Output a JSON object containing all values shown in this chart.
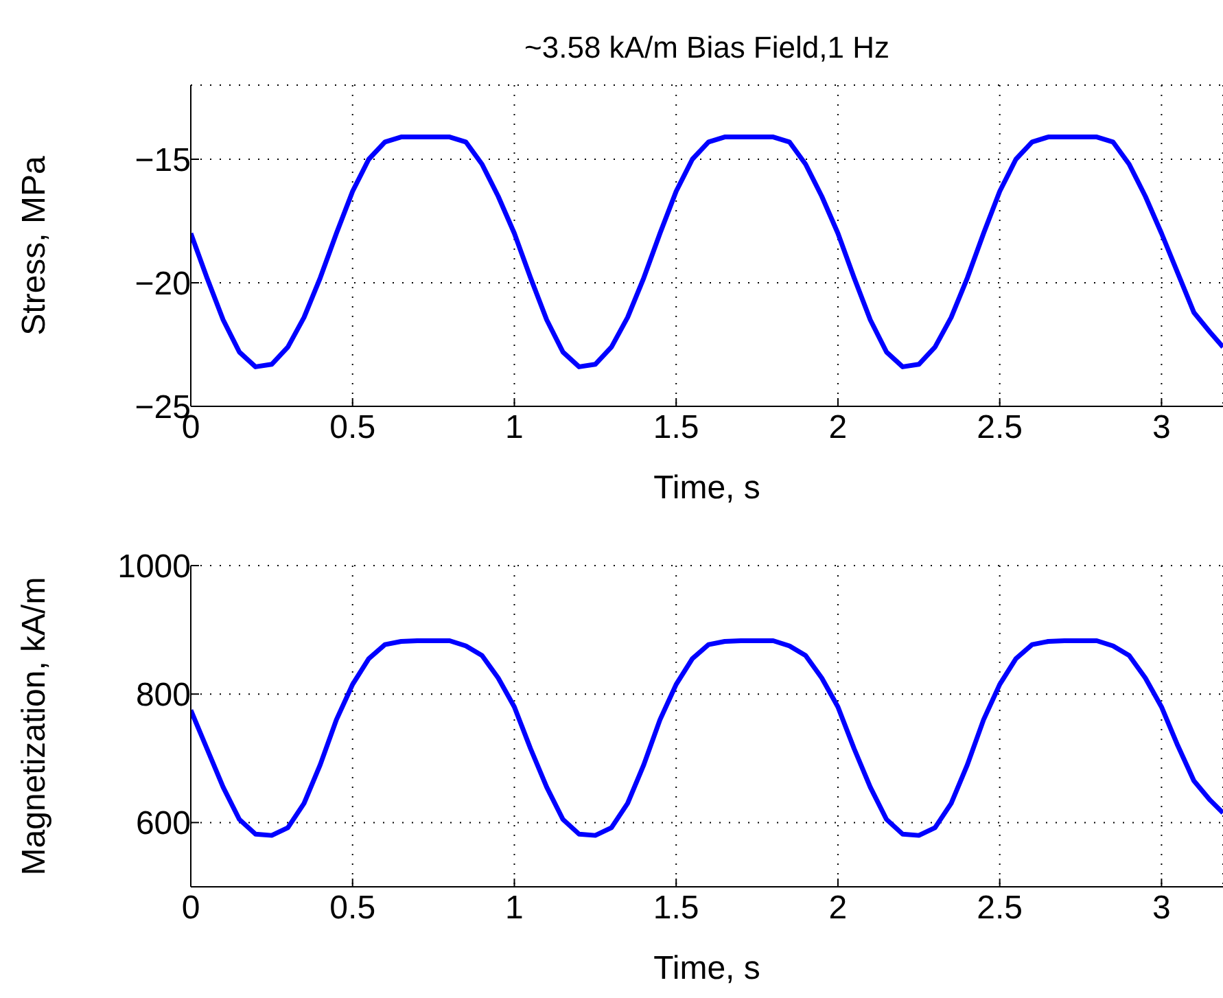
{
  "chart_data": [
    {
      "type": "line",
      "title": "~3.58 kA/m Bias Field,1 Hz",
      "xlabel": "Time, s",
      "ylabel": "Stress, MPa",
      "xlim": [
        0,
        3.19
      ],
      "xticks": [
        0,
        0.5,
        1,
        1.5,
        2,
        2.5,
        3
      ],
      "ylim": [
        -25,
        -12
      ],
      "yticks": [
        -25,
        -20,
        -15
      ],
      "grid": true,
      "x": [
        0,
        0.05,
        0.1,
        0.15,
        0.2,
        0.25,
        0.3,
        0.35,
        0.4,
        0.45,
        0.5,
        0.55,
        0.6,
        0.65,
        0.7,
        0.75,
        0.8,
        0.85,
        0.9,
        0.95,
        1,
        1.05,
        1.1,
        1.15,
        1.2,
        1.25,
        1.3,
        1.35,
        1.4,
        1.45,
        1.5,
        1.55,
        1.6,
        1.65,
        1.7,
        1.75,
        1.8,
        1.85,
        1.9,
        1.95,
        2,
        2.05,
        2.1,
        2.15,
        2.2,
        2.25,
        2.3,
        2.35,
        2.4,
        2.45,
        2.5,
        2.55,
        2.6,
        2.65,
        2.7,
        2.75,
        2.8,
        2.85,
        2.9,
        2.95,
        3,
        3.05,
        3.1,
        3.15,
        3.19
      ],
      "series": [
        {
          "color": "#0000ff",
          "values": [
            -18,
            -19.8,
            -21.5,
            -22.8,
            -23.4,
            -23.3,
            -22.6,
            -21.4,
            -19.8,
            -18,
            -16.3,
            -15,
            -14.3,
            -14.1,
            -14.1,
            -14.1,
            -14.1,
            -14.3,
            -15.2,
            -16.5,
            -18,
            -19.8,
            -21.5,
            -22.8,
            -23.4,
            -23.3,
            -22.6,
            -21.4,
            -19.8,
            -18,
            -16.3,
            -15,
            -14.3,
            -14.1,
            -14.1,
            -14.1,
            -14.1,
            -14.3,
            -15.2,
            -16.5,
            -18,
            -19.8,
            -21.5,
            -22.8,
            -23.4,
            -23.3,
            -22.6,
            -21.4,
            -19.8,
            -18,
            -16.3,
            -15,
            -14.3,
            -14.1,
            -14.1,
            -14.1,
            -14.1,
            -14.3,
            -15.2,
            -16.5,
            -18,
            -19.6,
            -21.2,
            -22,
            -22.6
          ]
        }
      ]
    },
    {
      "type": "line",
      "xlabel": "Time, s",
      "ylabel": "Magnetization, kA/m",
      "xlim": [
        0,
        3.19
      ],
      "xticks": [
        0,
        0.5,
        1,
        1.5,
        2,
        2.5,
        3
      ],
      "ylim": [
        500,
        1000
      ],
      "yticks": [
        600,
        800,
        1000
      ],
      "grid": true,
      "x": [
        0,
        0.05,
        0.1,
        0.15,
        0.2,
        0.25,
        0.3,
        0.35,
        0.4,
        0.45,
        0.5,
        0.55,
        0.6,
        0.65,
        0.7,
        0.75,
        0.8,
        0.85,
        0.9,
        0.95,
        1,
        1.05,
        1.1,
        1.15,
        1.2,
        1.25,
        1.3,
        1.35,
        1.4,
        1.45,
        1.5,
        1.55,
        1.6,
        1.65,
        1.7,
        1.75,
        1.8,
        1.85,
        1.9,
        1.95,
        2,
        2.05,
        2.1,
        2.15,
        2.2,
        2.25,
        2.3,
        2.35,
        2.4,
        2.45,
        2.5,
        2.55,
        2.6,
        2.65,
        2.7,
        2.75,
        2.8,
        2.85,
        2.9,
        2.95,
        3,
        3.05,
        3.1,
        3.15,
        3.19
      ],
      "series": [
        {
          "color": "#0000ff",
          "values": [
            775,
            715,
            655,
            605,
            582,
            580,
            592,
            630,
            690,
            760,
            815,
            855,
            877,
            882,
            883,
            883,
            883,
            875,
            860,
            825,
            780,
            715,
            655,
            605,
            582,
            580,
            592,
            630,
            690,
            760,
            815,
            855,
            877,
            882,
            883,
            883,
            883,
            875,
            860,
            825,
            780,
            715,
            655,
            605,
            582,
            580,
            592,
            630,
            690,
            760,
            815,
            855,
            877,
            882,
            883,
            883,
            883,
            875,
            860,
            825,
            780,
            720,
            665,
            635,
            615
          ]
        }
      ]
    }
  ]
}
